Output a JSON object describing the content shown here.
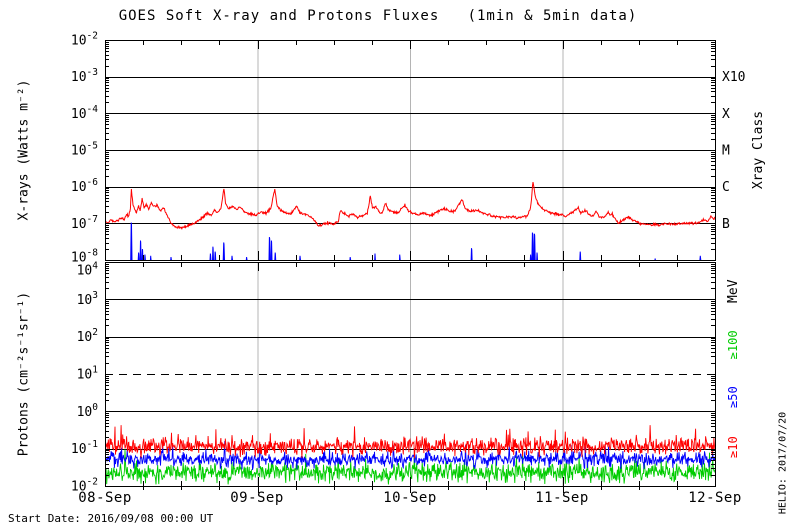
{
  "title": "GOES Soft X-ray and Protons Fluxes   (1min & 5min data)",
  "footer": {
    "start_date": "Start Date: 2016/09/08 00:00 UT"
  },
  "credit": "HELIO: 2017/07/20",
  "colors": {
    "axis": "#000000",
    "day_gridline": "#b4b4b4",
    "xray_long": "#ff0000",
    "xray_short": "#0000ff",
    "protons_ge10": "#ff0000",
    "protons_ge50": "#0000ff",
    "protons_ge100": "#00cc00"
  },
  "x_axis": {
    "tick_labels": [
      "08-Sep",
      "09-Sep",
      "10-Sep",
      "11-Sep",
      "12-Sep"
    ],
    "total_hours": 96,
    "minor_tick_hours": 6,
    "day_line_hours": [
      24,
      48,
      72
    ]
  },
  "chart_data": [
    {
      "id": "xray_panel",
      "type": "line",
      "yscale": "log",
      "ylabel": "X-rays (Watts m⁻²)",
      "ylim": [
        1e-08,
        0.01
      ],
      "ytick_exponents": [
        -2,
        -3,
        -4,
        -5,
        -6,
        -7,
        -8
      ],
      "hgrid_exponents": [
        -3,
        -4,
        -5,
        -6,
        -7
      ],
      "dashed_exponents": [],
      "right_axis": {
        "title": "Xray Class",
        "title_y_value": 1e-05,
        "labels": [
          {
            "text": "X10",
            "exp": -3,
            "color": "#000000"
          },
          {
            "text": "X",
            "exp": -4,
            "color": "#000000"
          },
          {
            "text": "M",
            "exp": -5,
            "color": "#000000"
          },
          {
            "text": "C",
            "exp": -6,
            "color": "#000000"
          },
          {
            "text": "B",
            "exp": -7,
            "color": "#000000"
          }
        ]
      },
      "series": [
        {
          "name": "goes-xray-long",
          "color": "#ff0000",
          "style": "keypoints",
          "noise_log_sigma": 0.018,
          "seed": 9,
          "keypoints": [
            [
              0,
              1.15e-07
            ],
            [
              0.4,
              1e-07
            ],
            [
              0.9,
              1.25e-07
            ],
            [
              1.4,
              1.05e-07
            ],
            [
              1.9,
              1.2e-07
            ],
            [
              2.5,
              1.35e-07
            ],
            [
              3.0,
              1.25e-07
            ],
            [
              3.4,
              1.8e-07
            ],
            [
              3.7,
              1.5e-07
            ],
            [
              4.0,
              2.5e-07
            ],
            [
              4.15,
              8.5e-07
            ],
            [
              4.4,
              3.2e-07
            ],
            [
              4.7,
              2.3e-07
            ],
            [
              5.0,
              1.9e-07
            ],
            [
              5.25,
              3e-07
            ],
            [
              5.55,
              2.3e-07
            ],
            [
              5.85,
              4.6e-07
            ],
            [
              6.15,
              2.7e-07
            ],
            [
              6.5,
              3.3e-07
            ],
            [
              6.9,
              2.4e-07
            ],
            [
              7.3,
              3.7e-07
            ],
            [
              7.7,
              2.7e-07
            ],
            [
              8.2,
              3.2e-07
            ],
            [
              8.7,
              2.2e-07
            ],
            [
              9.2,
              2.6e-07
            ],
            [
              9.7,
              1.8e-07
            ],
            [
              10.2,
              1.15e-07
            ],
            [
              10.8,
              8.5e-08
            ],
            [
              11.6,
              7.5e-08
            ],
            [
              12.6,
              8e-08
            ],
            [
              13.6,
              9.5e-08
            ],
            [
              14.6,
              1.15e-07
            ],
            [
              15.4,
              1.5e-07
            ],
            [
              16.1,
              1.9e-07
            ],
            [
              16.7,
              1.65e-07
            ],
            [
              17.2,
              2.3e-07
            ],
            [
              17.7,
              1.9e-07
            ],
            [
              18.3,
              2.7e-07
            ],
            [
              18.7,
              9e-07
            ],
            [
              19.0,
              3.3e-07
            ],
            [
              19.5,
              2.5e-07
            ],
            [
              20.1,
              3e-07
            ],
            [
              20.7,
              2.4e-07
            ],
            [
              21.2,
              2.8e-07
            ],
            [
              21.9,
              2.1e-07
            ],
            [
              22.8,
              1.8e-07
            ],
            [
              23.8,
              1.65e-07
            ],
            [
              24.6,
              2.1e-07
            ],
            [
              25.2,
              1.85e-07
            ],
            [
              26.1,
              2.5e-07
            ],
            [
              26.7,
              8.5e-07
            ],
            [
              27.1,
              3.1e-07
            ],
            [
              27.6,
              2.3e-07
            ],
            [
              28.3,
              2e-07
            ],
            [
              29.2,
              1.8e-07
            ],
            [
              30.2,
              3e-07
            ],
            [
              30.6,
              2e-07
            ],
            [
              31.3,
              1.8e-07
            ],
            [
              32.2,
              1.6e-07
            ],
            [
              33.0,
              1.2e-07
            ],
            [
              33.6,
              8.5e-08
            ],
            [
              34.4,
              9.5e-08
            ],
            [
              35.1,
              1.05e-07
            ],
            [
              35.9,
              9.5e-08
            ],
            [
              36.7,
              1.15e-07
            ],
            [
              37.1,
              2.2e-07
            ],
            [
              37.6,
              1.9e-07
            ],
            [
              38.3,
              1.55e-07
            ],
            [
              39.0,
              1.75e-07
            ],
            [
              39.8,
              1.45e-07
            ],
            [
              40.6,
              1.6e-07
            ],
            [
              41.3,
              1.9e-07
            ],
            [
              41.75,
              5.5e-07
            ],
            [
              42.1,
              2.6e-07
            ],
            [
              42.6,
              3e-07
            ],
            [
              43.1,
              2e-07
            ],
            [
              43.7,
              1.9e-07
            ],
            [
              44.15,
              3.6e-07
            ],
            [
              44.6,
              2.3e-07
            ],
            [
              45.3,
              2.05e-07
            ],
            [
              46.1,
              1.9e-07
            ],
            [
              47.2,
              3.1e-07
            ],
            [
              47.7,
              2.2e-07
            ],
            [
              48.4,
              1.9e-07
            ],
            [
              49.3,
              1.7e-07
            ],
            [
              50.2,
              1.9e-07
            ],
            [
              51.2,
              1.6e-07
            ],
            [
              52.3,
              2.1e-07
            ],
            [
              53.4,
              2.5e-07
            ],
            [
              54.2,
              2.1e-07
            ],
            [
              55.1,
              2.2e-07
            ],
            [
              56.2,
              4.5e-07
            ],
            [
              56.7,
              2.5e-07
            ],
            [
              57.6,
              2.1e-07
            ],
            [
              58.5,
              2.3e-07
            ],
            [
              59.5,
              1.9e-07
            ],
            [
              60.8,
              1.6e-07
            ],
            [
              62.2,
              1.45e-07
            ],
            [
              63.8,
              1.5e-07
            ],
            [
              65.2,
              1.4e-07
            ],
            [
              66.4,
              1.6e-07
            ],
            [
              67.0,
              2.6e-07
            ],
            [
              67.35,
              1.45e-06
            ],
            [
              67.7,
              5.5e-07
            ],
            [
              68.2,
              3.2e-07
            ],
            [
              68.9,
              2.5e-07
            ],
            [
              69.7,
              2.1e-07
            ],
            [
              70.6,
              1.85e-07
            ],
            [
              71.6,
              1.7e-07
            ],
            [
              72.6,
              1.55e-07
            ],
            [
              73.7,
              2.1e-07
            ],
            [
              74.4,
              2.6e-07
            ],
            [
              74.9,
              1.9e-07
            ],
            [
              75.6,
              2.3e-07
            ],
            [
              76.2,
              1.7e-07
            ],
            [
              76.8,
              1.55e-07
            ],
            [
              77.3,
              2.2e-07
            ],
            [
              77.8,
              1.5e-07
            ],
            [
              78.5,
              1.45e-07
            ],
            [
              79.2,
              2e-07
            ],
            [
              79.5,
              1.6e-07
            ],
            [
              79.8,
              1.9e-07
            ],
            [
              80.3,
              1.3e-07
            ],
            [
              80.8,
              1e-07
            ],
            [
              81.5,
              1.2e-07
            ],
            [
              82.3,
              1.5e-07
            ],
            [
              83.2,
              1.2e-07
            ],
            [
              84.2,
              1e-07
            ],
            [
              85.2,
              9.2e-08
            ],
            [
              86.5,
              9e-08
            ],
            [
              88,
              9.5e-08
            ],
            [
              90,
              9.5e-08
            ],
            [
              91.5,
              1e-07
            ],
            [
              93,
              1e-07
            ],
            [
              93.8,
              1.1e-07
            ],
            [
              94.3,
              1.3e-07
            ],
            [
              94.8,
              1.1e-07
            ],
            [
              95.4,
              1.55e-07
            ],
            [
              95.8,
              1.3e-07
            ],
            [
              96,
              1.4e-07
            ]
          ]
        },
        {
          "name": "goes-xray-short",
          "color": "#0000ff",
          "style": "spikes",
          "baseline": 1e-08,
          "spikes": [
            [
              4.15,
              1.05e-07,
              0.1
            ],
            [
              5.3,
              1.6e-08,
              0.07
            ],
            [
              5.6,
              3.4e-08,
              0.08
            ],
            [
              5.9,
              2e-08,
              0.07
            ],
            [
              6.3,
              1.4e-08,
              0.06
            ],
            [
              7.2,
              1.3e-08,
              0.06
            ],
            [
              10.4,
              1.2e-08,
              0.06
            ],
            [
              16.6,
              1.5e-08,
              0.07
            ],
            [
              17.0,
              2.3e-08,
              0.08
            ],
            [
              17.35,
              1.7e-08,
              0.07
            ],
            [
              18.7,
              3e-08,
              0.1
            ],
            [
              20.0,
              1.3e-08,
              0.06
            ],
            [
              22.3,
              1.2e-08,
              0.06
            ],
            [
              25.9,
              4.2e-08,
              0.09
            ],
            [
              26.2,
              3.4e-08,
              0.08
            ],
            [
              26.8,
              1.6e-08,
              0.07
            ],
            [
              30.7,
              1.3e-08,
              0.06
            ],
            [
              38.6,
              1.2e-08,
              0.06
            ],
            [
              42.5,
              1.5e-08,
              0.06
            ],
            [
              46.4,
              1.4e-08,
              0.06
            ],
            [
              57.7,
              2.1e-08,
              0.08
            ],
            [
              67.0,
              1.4e-08,
              0.06
            ],
            [
              67.3,
              5.6e-08,
              0.12
            ],
            [
              67.6,
              5.2e-08,
              0.1
            ],
            [
              68.0,
              1.6e-08,
              0.06
            ],
            [
              74.8,
              1.7e-08,
              0.07
            ],
            [
              86.6,
              1.1e-08,
              0.06
            ],
            [
              93.7,
              1.3e-08,
              0.07
            ]
          ]
        }
      ]
    },
    {
      "id": "proton_panel",
      "type": "line",
      "yscale": "log",
      "ylabel": "Protons (cm⁻²s⁻¹sr⁻¹)",
      "ylim": [
        0.01,
        10000.0
      ],
      "ytick_exponents": [
        4,
        3,
        2,
        1,
        0,
        -1,
        -2
      ],
      "hgrid_exponents": [
        3,
        2,
        0,
        -1
      ],
      "dashed_exponents": [
        1
      ],
      "right_axis": {
        "title": "MeV",
        "title_y_value": 1650,
        "labels": [
          {
            "text": "≥100",
            "y_value": 60,
            "color": "#00cc00"
          },
          {
            "text": "≥50",
            "y_value": 2.4,
            "color": "#0000ff"
          },
          {
            "text": "≥10",
            "y_value": 0.11,
            "color": "#ff0000"
          }
        ]
      },
      "series": [
        {
          "name": "protons-ge100MeV",
          "color": "#00cc00",
          "style": "noise_band",
          "median": 0.023,
          "log_sigma": 0.13,
          "points": 1100,
          "seed": 101
        },
        {
          "name": "protons-ge50MeV",
          "color": "#0000ff",
          "style": "noise_band",
          "median": 0.052,
          "log_sigma": 0.1,
          "points": 1100,
          "seed": 202
        },
        {
          "name": "protons-ge10MeV",
          "color": "#ff0000",
          "style": "noise_band",
          "median": 0.115,
          "log_sigma": 0.11,
          "points": 1100,
          "seed": 303
        }
      ]
    }
  ]
}
